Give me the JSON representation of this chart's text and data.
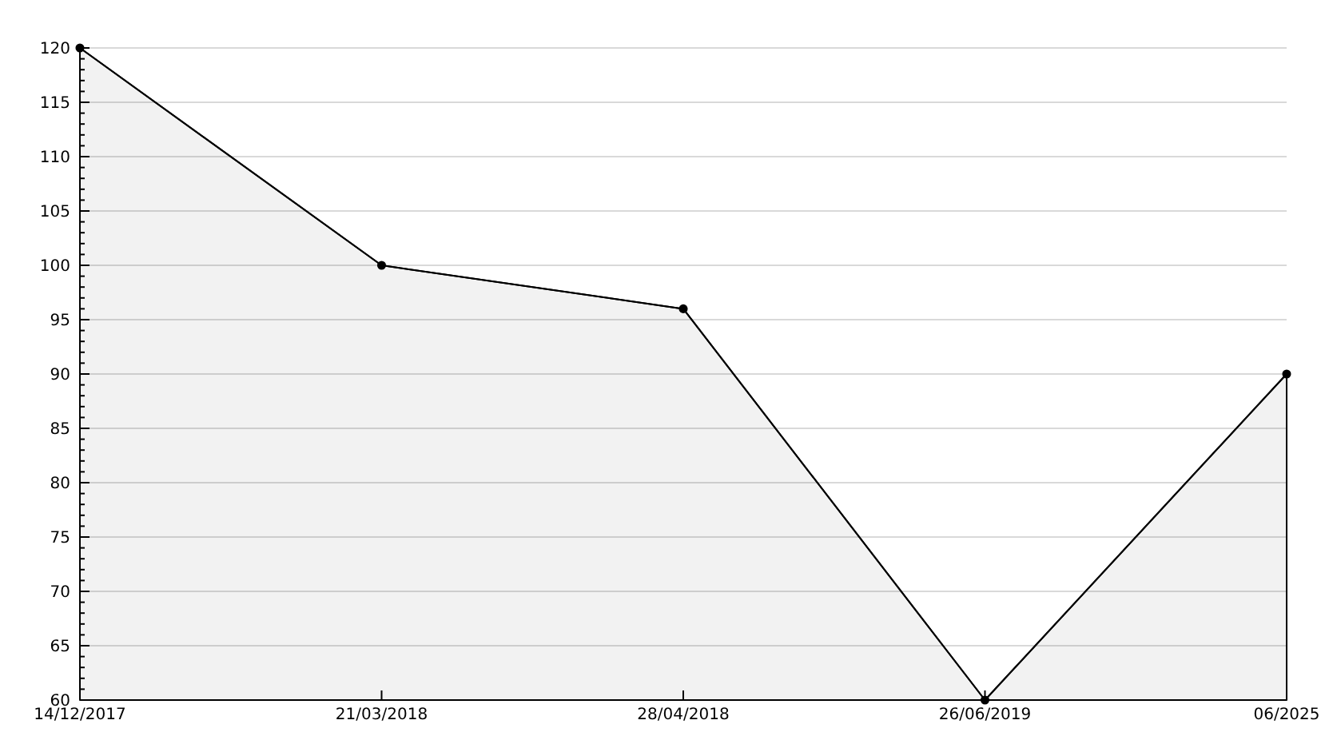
{
  "chart_data": {
    "type": "area",
    "categories": [
      "14/12/2017",
      "21/03/2018",
      "28/04/2018",
      "26/06/2019",
      "06/2025"
    ],
    "series": [
      {
        "color": "#000000",
        "values": [
          120,
          100,
          96,
          60,
          90
        ]
      }
    ],
    "ylim": [
      60,
      120
    ],
    "yticks": [
      60,
      {
        "value": 61,
        "label": null
      },
      {
        "value": 62,
        "label": null
      },
      {
        "value": 63,
        "label": null
      },
      {
        "value": 64,
        "label": null
      },
      65,
      {
        "value": 66,
        "label": null
      },
      {
        "value": 67,
        "label": null
      },
      {
        "value": 68,
        "label": null
      },
      {
        "value": 69,
        "label": null
      },
      70,
      {
        "value": 71,
        "label": null
      },
      {
        "value": 72,
        "label": null
      },
      {
        "value": 73,
        "label": null
      },
      {
        "value": 74,
        "label": null
      },
      75,
      {
        "value": 76,
        "label": null
      },
      {
        "value": 77,
        "label": null
      },
      {
        "value": 78,
        "label": null
      },
      {
        "value": 79,
        "label": null
      },
      80,
      {
        "value": 81,
        "label": null
      },
      {
        "value": 82,
        "label": null
      },
      {
        "value": 83,
        "label": null
      },
      {
        "value": 84,
        "label": null
      },
      85,
      {
        "value": 86,
        "label": null
      },
      {
        "value": 87,
        "label": null
      },
      {
        "value": 88,
        "label": null
      },
      {
        "value": 89,
        "label": null
      },
      90,
      {
        "value": 91,
        "label": null
      },
      {
        "value": 92,
        "label": null
      },
      {
        "value": 93,
        "label": null
      },
      {
        "value": 94,
        "label": null
      },
      95,
      {
        "value": 96,
        "label": null
      },
      {
        "value": 97,
        "label": null
      },
      {
        "value": 98,
        "label": null
      },
      {
        "value": 99,
        "label": null
      },
      100,
      {
        "value": 101,
        "label": null
      },
      {
        "value": 102,
        "label": null
      },
      {
        "value": 103,
        "label": null
      },
      {
        "value": 104,
        "label": null
      },
      105,
      {
        "value": 106,
        "label": null
      },
      {
        "value": 107,
        "label": null
      },
      {
        "value": 108,
        "label": null
      },
      {
        "value": 109,
        "label": null
      },
      110,
      {
        "value": 111,
        "label": null
      },
      {
        "value": 112,
        "label": null
      },
      {
        "value": 113,
        "label": null
      },
      {
        "value": 114,
        "label": null
      },
      115,
      {
        "value": 116,
        "label": null
      },
      {
        "value": 117,
        "label": null
      },
      {
        "value": 118,
        "label": null
      },
      {
        "value": 119,
        "label": null
      },
      120
    ],
    "grid": "y",
    "marker": "circle",
    "line_style": "solid"
  }
}
